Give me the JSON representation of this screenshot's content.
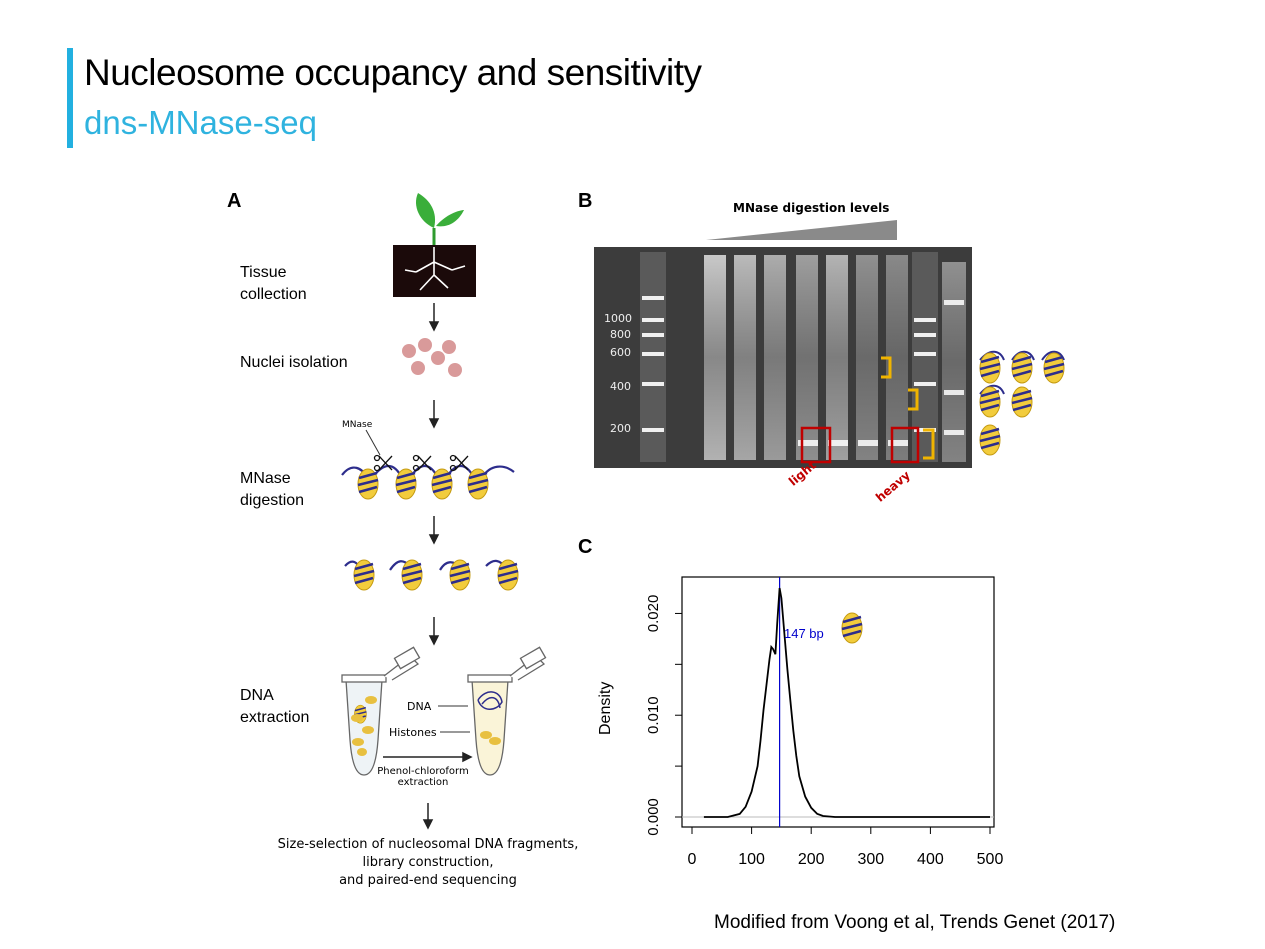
{
  "slide": {
    "title": "Nucleosome occupancy and sensitivity",
    "subtitle": "dns-MNase-seq",
    "credit": "Modified from Voong et al, Trends Genet  (2017)",
    "accent_color": "#22b0e0"
  },
  "panel_a": {
    "letter": "A",
    "steps": [
      {
        "label_line1": "Tissue",
        "label_line2": "collection"
      },
      {
        "label_line1": "Nuclei isolation",
        "label_line2": ""
      },
      {
        "label_line1": "MNase",
        "label_line2": "digestion"
      },
      {
        "label_line1": "DNA",
        "label_line2": "extraction"
      }
    ],
    "mnase_label": "MNase",
    "dna_label": "DNA",
    "histones_label": "Histones",
    "phenol_line1": "Phenol-chloroform",
    "phenol_line2": "extraction",
    "final_line1": "Size-selection of nucleosomal DNA fragments,",
    "final_line2": "library construction,",
    "final_line3": "and paired-end sequencing",
    "icons": [
      "plant-icon",
      "nuclei-icon",
      "scissors-icon",
      "nucleosome-icon",
      "tube-icon"
    ]
  },
  "panel_b": {
    "letter": "B",
    "header": "MNase  digestion levels",
    "ladder": [
      "1000",
      "800",
      "600",
      "400",
      "200"
    ],
    "light_label": "light",
    "heavy_label": "heavy",
    "box_color": "#c00000",
    "bracket_color": "#f0b400"
  },
  "panel_c": {
    "letter": "C",
    "peak_label": "147 bp"
  },
  "chart_data": {
    "type": "line",
    "title": "",
    "xlabel": "",
    "ylabel": "Density",
    "xlim": [
      0,
      520
    ],
    "ylim": [
      -0.002,
      0.0235
    ],
    "xticks": [
      "0",
      "100",
      "200",
      "300",
      "400",
      "500"
    ],
    "yticks": [
      "0.000",
      "0.010",
      "0.020"
    ],
    "vline": 147,
    "vline_color": "#0000cc",
    "x": [
      20,
      60,
      80,
      90,
      100,
      110,
      115,
      120,
      125,
      130,
      133,
      136,
      140,
      143,
      147,
      150,
      155,
      160,
      165,
      170,
      175,
      180,
      190,
      200,
      210,
      220,
      240,
      300,
      400,
      500
    ],
    "y": [
      0,
      0,
      0.0003,
      0.001,
      0.0025,
      0.005,
      0.0075,
      0.0105,
      0.013,
      0.0155,
      0.0167,
      0.0165,
      0.016,
      0.019,
      0.0225,
      0.0215,
      0.018,
      0.0145,
      0.0115,
      0.0085,
      0.006,
      0.004,
      0.002,
      0.0009,
      0.0003,
      0.0001,
      0,
      0,
      0,
      0
    ]
  }
}
